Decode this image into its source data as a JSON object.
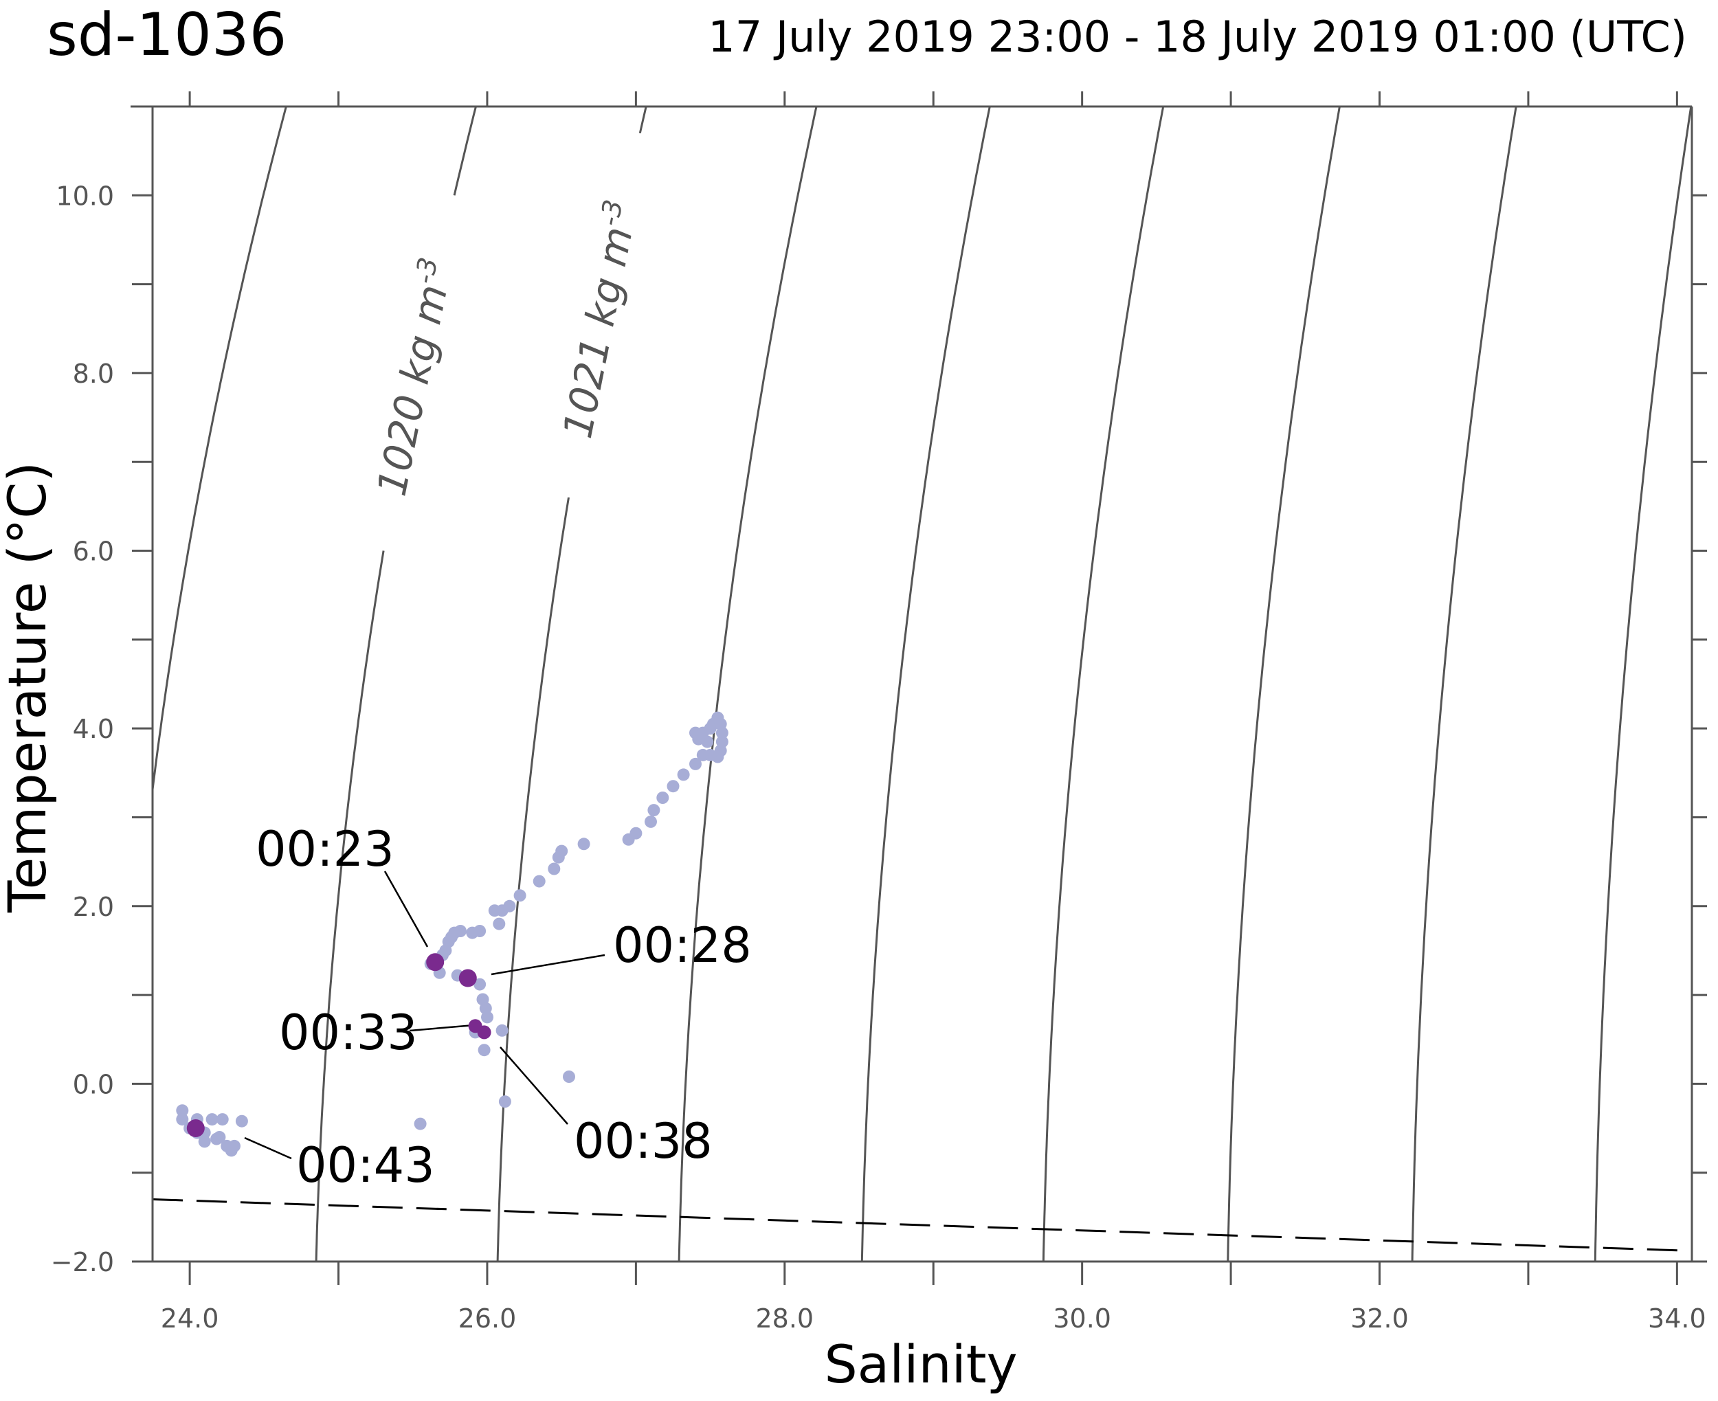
{
  "chart_data": {
    "type": "scatter",
    "title": "sd-1036",
    "subtitle": "17 July 2019 23:00 - 18 July 2019 01:00 (UTC)",
    "xlabel": "Salinity",
    "ylabel": "Temperature (°C)",
    "xlim": [
      23.75,
      34.1
    ],
    "ylim": [
      -2.0,
      11.0
    ],
    "x_ticks": [
      "24.0",
      "26.0",
      "28.0",
      "30.0",
      "32.0",
      "34.0"
    ],
    "y_ticks": [
      "−2.0",
      "0.0",
      "2.0",
      "4.0",
      "6.0",
      "8.0",
      "10.0"
    ],
    "grid": false,
    "colors": {
      "points": "#a7add6",
      "highlight": "#7a2a8e",
      "isopycnal": "#555555",
      "freezing_line": "#000000"
    },
    "isopycnals": [
      {
        "label": ""
      },
      {
        "label": "1020 kg m",
        "label_sup": "-3"
      },
      {
        "label": "1021 kg m",
        "label_sup": "-3"
      },
      {
        "label": ""
      },
      {
        "label": ""
      },
      {
        "label": ""
      },
      {
        "label": ""
      },
      {
        "label": ""
      },
      {
        "label": ""
      },
      {
        "label": ""
      }
    ],
    "series": [
      {
        "points": [
          [
            23.95,
            -0.3
          ],
          [
            23.95,
            -0.4
          ],
          [
            24.0,
            -0.5
          ],
          [
            24.05,
            -0.4
          ],
          [
            24.1,
            -0.55
          ],
          [
            24.15,
            -0.4
          ],
          [
            24.2,
            -0.6
          ],
          [
            24.22,
            -0.4
          ],
          [
            24.25,
            -0.7
          ],
          [
            24.28,
            -0.75
          ],
          [
            24.3,
            -0.7
          ],
          [
            24.35,
            -0.42
          ],
          [
            24.1,
            -0.65
          ],
          [
            24.18,
            -0.62
          ],
          [
            24.05,
            -0.55
          ],
          [
            25.55,
            -0.45
          ],
          [
            25.62,
            1.35
          ],
          [
            25.66,
            1.38
          ],
          [
            25.7,
            1.45
          ],
          [
            25.72,
            1.5
          ],
          [
            25.74,
            1.6
          ],
          [
            25.76,
            1.65
          ],
          [
            25.78,
            1.7
          ],
          [
            25.82,
            1.72
          ],
          [
            25.9,
            1.7
          ],
          [
            25.95,
            1.72
          ],
          [
            25.68,
            1.25
          ],
          [
            25.8,
            1.22
          ],
          [
            25.95,
            1.12
          ],
          [
            25.97,
            0.95
          ],
          [
            25.99,
            0.85
          ],
          [
            26.0,
            0.75
          ],
          [
            25.92,
            0.58
          ],
          [
            25.98,
            0.38
          ],
          [
            26.1,
            0.6
          ],
          [
            26.12,
            -0.2
          ],
          [
            26.55,
            0.08
          ],
          [
            26.05,
            1.95
          ],
          [
            26.1,
            1.95
          ],
          [
            26.08,
            1.8
          ],
          [
            26.15,
            2.0
          ],
          [
            26.22,
            2.12
          ],
          [
            26.35,
            2.28
          ],
          [
            26.45,
            2.42
          ],
          [
            26.48,
            2.55
          ],
          [
            26.5,
            2.62
          ],
          [
            26.65,
            2.7
          ],
          [
            26.95,
            2.75
          ],
          [
            27.0,
            2.82
          ],
          [
            27.1,
            2.95
          ],
          [
            27.12,
            3.08
          ],
          [
            27.18,
            3.22
          ],
          [
            27.25,
            3.35
          ],
          [
            27.32,
            3.48
          ],
          [
            27.4,
            3.6
          ],
          [
            27.45,
            3.7
          ],
          [
            27.42,
            3.88
          ],
          [
            27.4,
            3.95
          ],
          [
            27.45,
            3.95
          ],
          [
            27.48,
            3.85
          ],
          [
            27.5,
            4.0
          ],
          [
            27.52,
            4.05
          ],
          [
            27.55,
            4.12
          ],
          [
            27.57,
            4.05
          ],
          [
            27.58,
            3.95
          ],
          [
            27.58,
            3.85
          ],
          [
            27.57,
            3.75
          ],
          [
            27.55,
            3.68
          ],
          [
            27.5,
            3.7
          ]
        ]
      },
      {
        "points": [
          [
            25.65,
            1.37
          ],
          [
            25.87,
            1.19
          ],
          [
            25.92,
            0.65
          ],
          [
            25.98,
            0.58
          ],
          [
            24.04,
            -0.5
          ]
        ]
      }
    ],
    "annotations": [
      {
        "text": "00:23",
        "x": 25.65,
        "y": 1.37
      },
      {
        "text": "00:28",
        "x": 25.87,
        "y": 1.19
      },
      {
        "text": "00:33",
        "x": 25.92,
        "y": 0.65
      },
      {
        "text": "00:38",
        "x": 25.98,
        "y": 0.58
      },
      {
        "text": "00:43",
        "x": 24.04,
        "y": -0.5
      }
    ],
    "freezing_line": [
      [
        23.75,
        -1.3
      ],
      [
        34.1,
        -1.88
      ]
    ]
  }
}
